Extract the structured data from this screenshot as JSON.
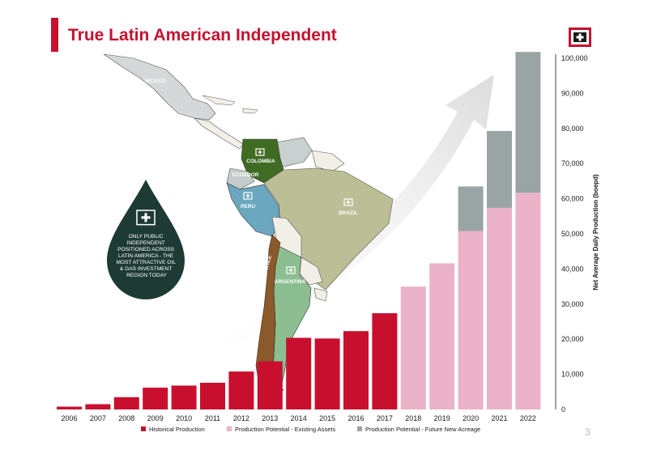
{
  "slide": {
    "title": "True Latin American Independent",
    "page_number": "3"
  },
  "colors": {
    "brand_red": "#c8102e",
    "existing_pink": "#ebb2c8",
    "future_gray": "#9aa4a4",
    "drop_green": "#1e3a35"
  },
  "logo": {
    "icon": "company-logo-icon"
  },
  "map": {
    "countries": {
      "mexico": "MEXICO",
      "colombia": "COLOMBIA",
      "ecuador": "ECUADOR",
      "peru": "PERU",
      "brazil": "BRAZIL",
      "chile": "CHILE",
      "argentina": "ARGENTINA"
    },
    "country_icon": "company-logo-icon"
  },
  "callout": {
    "icon": "company-logo-icon",
    "lines": [
      "ONLY PUBLIC",
      "INDEPENDENT",
      "POSITIONED ACROSS",
      "LATIN AMERICA - THE",
      "MOST ATTRACTIVE OIL",
      "& GAS INVESTMENT",
      "REGION TODAY"
    ]
  },
  "chart_data": {
    "type": "bar",
    "stacked": true,
    "categories": [
      "2006",
      "2007",
      "2008",
      "2009",
      "2010",
      "2011",
      "2012",
      "2013",
      "2014",
      "2015",
      "2016",
      "2017",
      "2018",
      "2019",
      "2020",
      "2021",
      "2022"
    ],
    "series": [
      {
        "name": "Historical Production",
        "color": "#c8102e",
        "values": [
          800,
          1500,
          3500,
          6200,
          6800,
          7600,
          10800,
          13700,
          20400,
          20200,
          22300,
          27400,
          0,
          0,
          0,
          0,
          0
        ]
      },
      {
        "name": "Production Potential - Existing Assets",
        "color": "#ebb2c8",
        "values": [
          0,
          0,
          0,
          0,
          0,
          0,
          0,
          0,
          0,
          0,
          0,
          0,
          35000,
          41600,
          50800,
          57400,
          61700
        ]
      },
      {
        "name": "Production Potential - Future New Acreage",
        "color": "#9aa4a4",
        "values": [
          0,
          0,
          0,
          0,
          0,
          0,
          0,
          0,
          0,
          0,
          0,
          0,
          0,
          0,
          12700,
          21900,
          40100
        ]
      }
    ],
    "ylabel": "Net Average Daily Production (boepd)",
    "ylim": [
      0,
      100000
    ],
    "yticks": [
      "0",
      "10,000",
      "20,000",
      "30,000",
      "40,000",
      "50,000",
      "60,000",
      "70,000",
      "80,000",
      "90,000",
      "100,000"
    ],
    "y_axis_position": "right",
    "grid": false,
    "legend_position": "bottom"
  }
}
